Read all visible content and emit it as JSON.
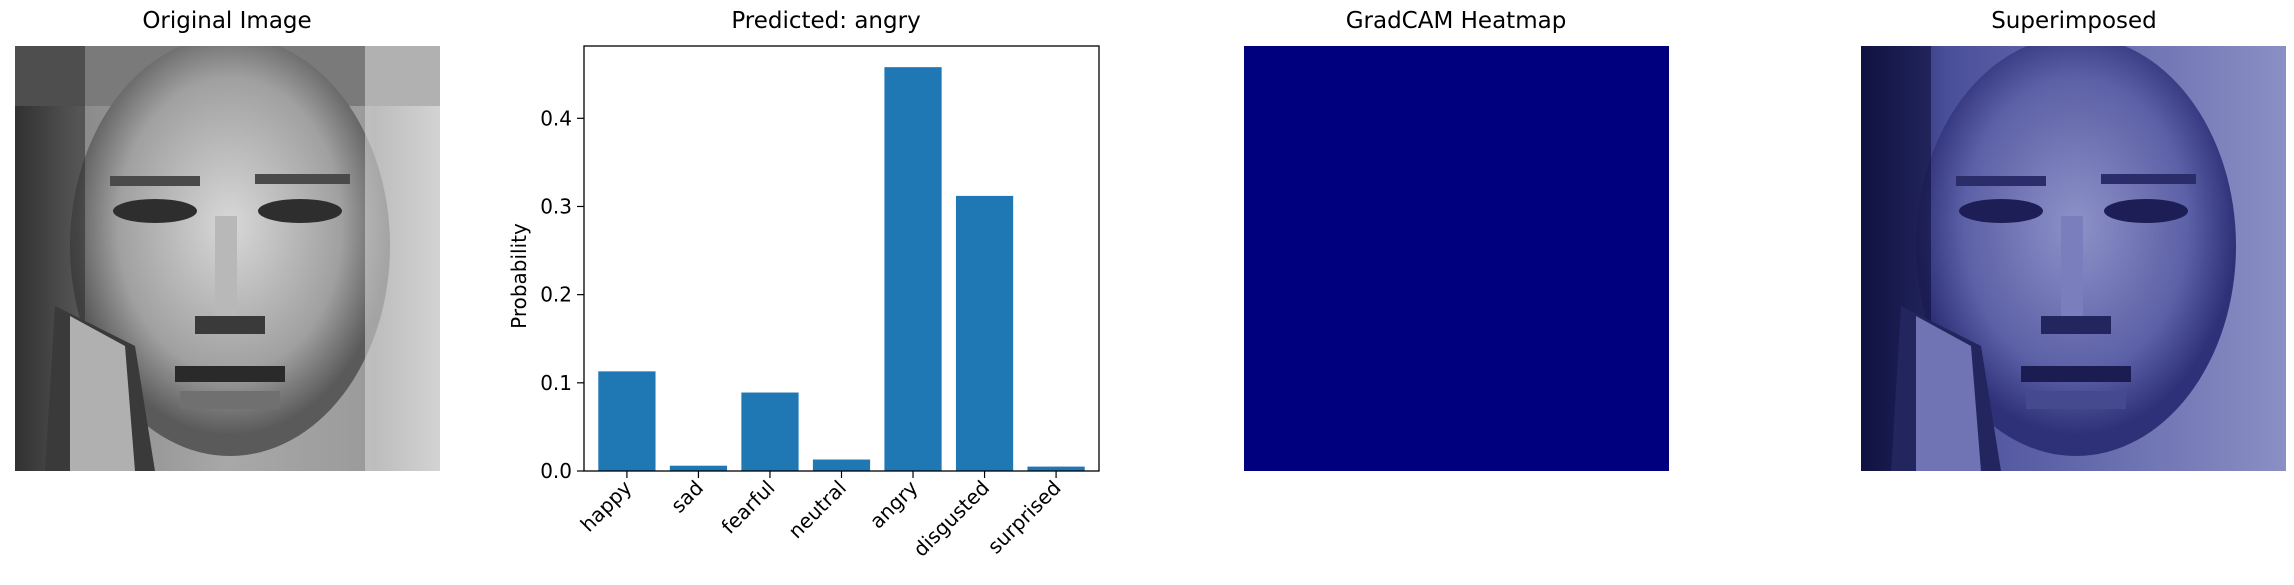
{
  "panels": {
    "original_title": "Original Image",
    "chart_title": "Predicted: angry",
    "heatmap_title": "GradCAM Heatmap",
    "superimposed_title": "Superimposed"
  },
  "colors": {
    "bar": "#1f77b4",
    "heatmap": "#00007f",
    "overlay_tint": "#3b3f9a"
  },
  "chart_data": {
    "type": "bar",
    "title": "Predicted: angry",
    "xlabel": "",
    "ylabel": "Probability",
    "categories": [
      "happy",
      "sad",
      "fearful",
      "neutral",
      "angry",
      "disgusted",
      "surprised"
    ],
    "values": [
      0.113,
      0.006,
      0.089,
      0.013,
      0.458,
      0.312,
      0.005
    ],
    "ylim": [
      0,
      0.482
    ],
    "yticks": [
      0.0,
      0.1,
      0.2,
      0.3,
      0.4
    ],
    "ytick_labels": [
      "0.0",
      "0.1",
      "0.2",
      "0.3",
      "0.4"
    ],
    "grid": false,
    "legend": "none"
  }
}
